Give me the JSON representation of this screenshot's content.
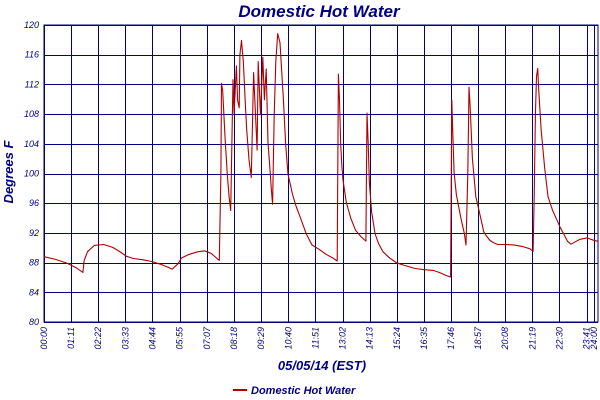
{
  "chart_data": {
    "type": "line",
    "title": "Domestic Hot Water",
    "xlabel": "05/05/14 (EST)",
    "ylabel": "Degrees F",
    "ylim": [
      80,
      120
    ],
    "yticks": [
      80,
      84,
      88,
      92,
      96,
      100,
      104,
      108,
      112,
      116,
      120
    ],
    "ytick_labels": [
      "80",
      "84",
      "88",
      "92",
      "96",
      "100",
      "104",
      "108",
      "112",
      "116",
      "120"
    ],
    "xlim": [
      0,
      24.183
    ],
    "x_unit": "hours",
    "xtick_labels": [
      "00:00",
      "01:11",
      "02:22",
      "03:33",
      "04:44",
      "05:55",
      "07:07",
      "08:18",
      "09:29",
      "10:40",
      "11:51",
      "13:02",
      "14:13",
      "15:24",
      "16:35",
      "17:46",
      "18:57",
      "20:08",
      "21:19",
      "22:30",
      "23:41",
      "24:00"
    ],
    "xtick_values": [
      0,
      1.183,
      2.367,
      3.55,
      4.733,
      5.917,
      7.117,
      8.3,
      9.483,
      10.667,
      11.85,
      13.033,
      14.217,
      15.4,
      16.583,
      17.767,
      18.95,
      20.133,
      21.317,
      22.5,
      23.683,
      24.0
    ],
    "grid": true,
    "legend_position": "bottom-center",
    "series": [
      {
        "name": "Domestic Hot Water",
        "color": "#b00000",
        "x": [
          0,
          0.5,
          1.0,
          1.4,
          1.7,
          1.75,
          1.9,
          2.2,
          2.6,
          3.0,
          3.3,
          3.6,
          3.9,
          4.3,
          4.7,
          5.1,
          5.6,
          5.85,
          6.0,
          6.3,
          6.7,
          7.0,
          7.3,
          7.55,
          7.65,
          7.72,
          7.75,
          7.8,
          7.9,
          8.0,
          8.08,
          8.15,
          8.25,
          8.3,
          8.4,
          8.45,
          8.52,
          8.55,
          8.62,
          8.7,
          8.78,
          8.85,
          8.95,
          9.05,
          9.15,
          9.3,
          9.35,
          9.45,
          9.55,
          9.62,
          9.7,
          9.78,
          9.85,
          9.92,
          9.98,
          10.05,
          10.12,
          10.2,
          10.3,
          10.45,
          10.55,
          10.65,
          10.75,
          10.85,
          11.0,
          11.2,
          11.45,
          11.7,
          12.0,
          12.3,
          12.6,
          12.8,
          12.85,
          12.9,
          12.95,
          13.0,
          13.05,
          13.2,
          13.4,
          13.6,
          13.85,
          14.05,
          14.1,
          14.15,
          14.2,
          14.3,
          14.45,
          14.6,
          14.8,
          15.1,
          15.4,
          15.8,
          16.2,
          16.6,
          17.0,
          17.3,
          17.55,
          17.75,
          17.8,
          17.85,
          17.9,
          18.0,
          18.2,
          18.35,
          18.42,
          18.5,
          18.55,
          18.6,
          18.7,
          18.85,
          19.0,
          19.1,
          19.2,
          19.3,
          19.45,
          19.6,
          19.8,
          20.1,
          20.5,
          20.9,
          21.2,
          21.35,
          21.4,
          21.45,
          21.5,
          21.55,
          21.6,
          21.7,
          21.85,
          22.0,
          22.2,
          22.4,
          22.55,
          22.7,
          22.85,
          23.0,
          23.2,
          23.4,
          23.7,
          24.0,
          24.18
        ],
        "y": [
          88.8,
          88.3,
          87.8,
          87.3,
          86.8,
          88.4,
          89.5,
          90.2,
          90.3,
          90.0,
          89.6,
          89.0,
          88.6,
          88.3,
          88.0,
          87.7,
          87.2,
          88.0,
          88.7,
          89.0,
          89.3,
          89.5,
          89.3,
          88.7,
          88.4,
          100.0,
          112.0,
          111.0,
          105.0,
          100.0,
          97.0,
          95.0,
          112.5,
          108.0,
          114.5,
          110.0,
          109.0,
          116.0,
          117.8,
          115.0,
          110.0,
          106.0,
          102.0,
          99.5,
          113.5,
          103.0,
          115.0,
          108.0,
          115.8,
          110.0,
          114.0,
          104.0,
          101.0,
          98.0,
          96.0,
          108.0,
          115.0,
          118.7,
          117.5,
          110.0,
          104.0,
          100.0,
          98.5,
          97.0,
          95.5,
          94.0,
          92.0,
          90.5,
          89.8,
          89.0,
          88.5,
          88.2,
          113.5,
          110.0,
          104.0,
          101.0,
          99.0,
          96.0,
          94.0,
          92.5,
          91.5,
          90.8,
          108.0,
          104.0,
          99.0,
          95.0,
          92.0,
          90.5,
          89.3,
          88.5,
          88.0,
          87.7,
          87.3,
          87.0,
          86.8,
          86.5,
          86.3,
          86.2,
          110.0,
          105.0,
          100.0,
          97.0,
          94.0,
          92.0,
          90.5,
          100.0,
          111.5,
          109.0,
          102.0,
          97.0,
          95.0,
          93.5,
          92.0,
          91.5,
          91.0,
          90.8,
          90.6,
          90.5,
          90.3,
          90.0,
          89.8,
          89.6,
          97.0,
          108.0,
          113.0,
          114.0,
          111.0,
          106.0,
          101.0,
          97.0,
          95.0,
          93.5,
          92.5,
          91.8,
          91.0,
          90.6,
          90.8,
          91.0,
          91.2,
          91.0,
          91.0
        ]
      }
    ]
  }
}
